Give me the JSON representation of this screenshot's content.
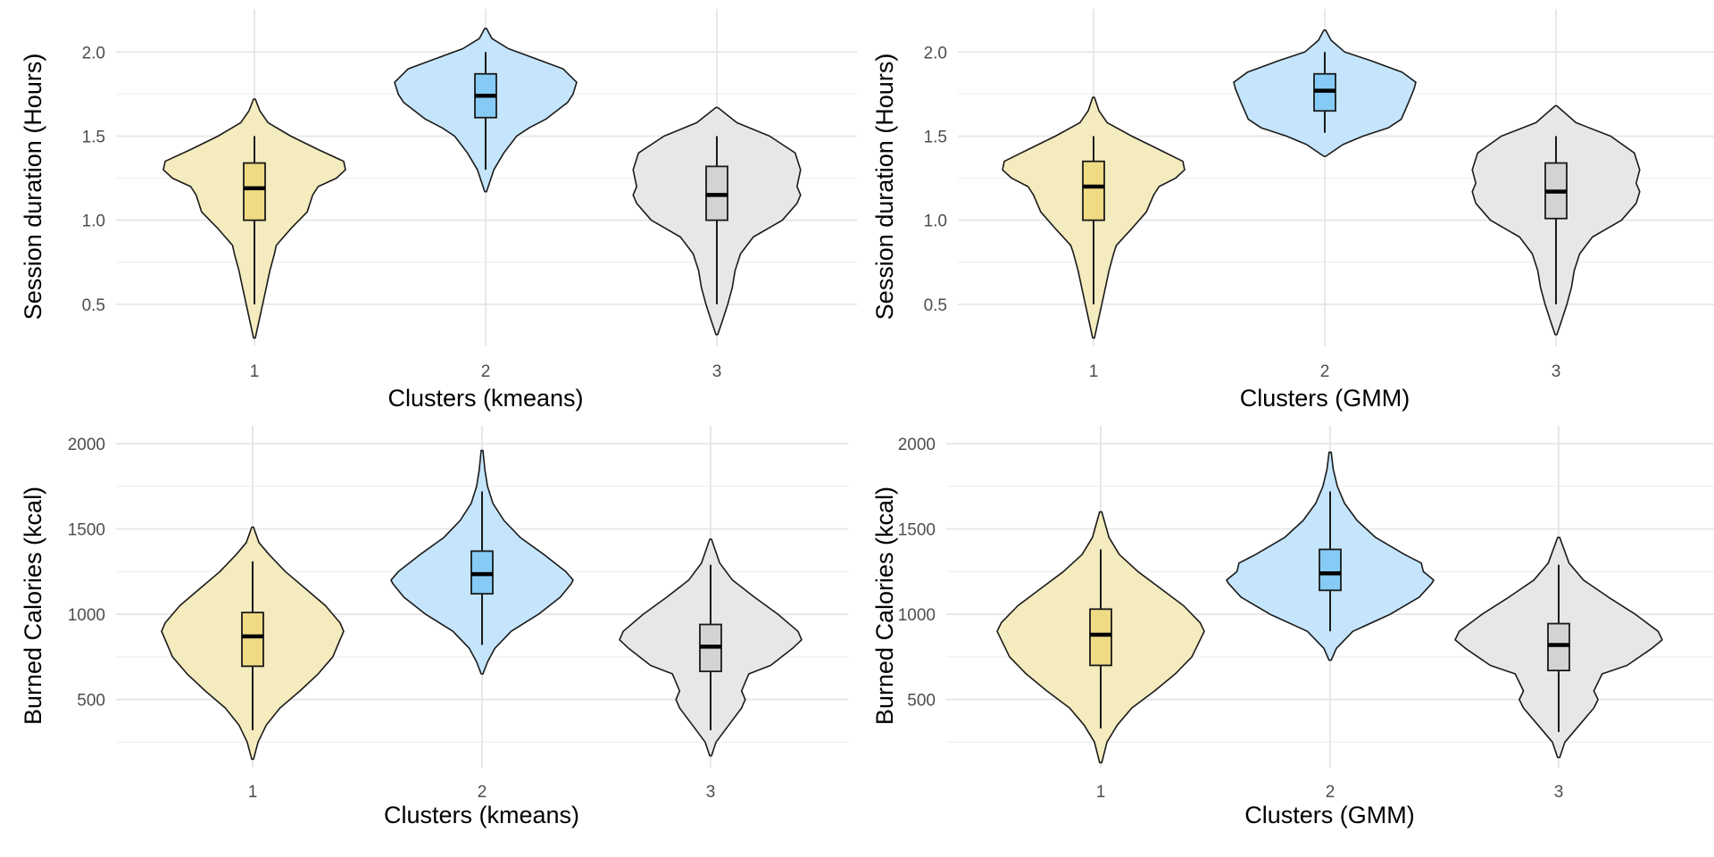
{
  "chart_data": [
    {
      "type": "violin",
      "xlabel": "Clusters (kmeans)",
      "ylabel": "Session duration (Hours)",
      "categories": [
        "1",
        "2",
        "3"
      ],
      "ylim": [
        0.25,
        2.15
      ],
      "yticks": [
        0.5,
        1.0,
        1.5,
        2.0
      ],
      "ytick_labels": [
        "0.5",
        "1.0",
        "1.5",
        "2.0"
      ],
      "grid": true,
      "violins": [
        {
          "min": 0.3,
          "max": 1.72,
          "box": {
            "whisker_low": 0.5,
            "q1": 1.0,
            "median": 1.19,
            "q3": 1.34,
            "whisker_high": 1.5
          },
          "profile": [
            [
              0.3,
              0.01
            ],
            [
              0.4,
              0.05
            ],
            [
              0.5,
              0.09
            ],
            [
              0.6,
              0.13
            ],
            [
              0.7,
              0.17
            ],
            [
              0.8,
              0.22
            ],
            [
              0.85,
              0.24
            ],
            [
              0.95,
              0.4
            ],
            [
              1.05,
              0.58
            ],
            [
              1.15,
              0.64
            ],
            [
              1.2,
              0.7
            ],
            [
              1.25,
              0.9
            ],
            [
              1.3,
              1.0
            ],
            [
              1.35,
              0.98
            ],
            [
              1.42,
              0.7
            ],
            [
              1.5,
              0.4
            ],
            [
              1.58,
              0.15
            ],
            [
              1.65,
              0.06
            ],
            [
              1.72,
              0.01
            ]
          ]
        },
        {
          "min": 1.17,
          "max": 2.14,
          "box": {
            "whisker_low": 1.3,
            "q1": 1.61,
            "median": 1.74,
            "q3": 1.87,
            "whisker_high": 2.0
          },
          "profile": [
            [
              1.17,
              0.01
            ],
            [
              1.3,
              0.09
            ],
            [
              1.4,
              0.2
            ],
            [
              1.5,
              0.34
            ],
            [
              1.55,
              0.48
            ],
            [
              1.6,
              0.66
            ],
            [
              1.7,
              0.9
            ],
            [
              1.75,
              0.96
            ],
            [
              1.82,
              1.0
            ],
            [
              1.9,
              0.85
            ],
            [
              1.96,
              0.55
            ],
            [
              2.02,
              0.25
            ],
            [
              2.08,
              0.07
            ],
            [
              2.14,
              0.01
            ]
          ]
        },
        {
          "min": 0.32,
          "max": 1.67,
          "box": {
            "whisker_low": 0.5,
            "q1": 1.0,
            "median": 1.15,
            "q3": 1.32,
            "whisker_high": 1.5
          },
          "profile": [
            [
              0.32,
              0.01
            ],
            [
              0.4,
              0.06
            ],
            [
              0.5,
              0.12
            ],
            [
              0.6,
              0.17
            ],
            [
              0.7,
              0.2
            ],
            [
              0.8,
              0.26
            ],
            [
              0.9,
              0.4
            ],
            [
              1.0,
              0.72
            ],
            [
              1.1,
              0.88
            ],
            [
              1.15,
              0.92
            ],
            [
              1.2,
              0.88
            ],
            [
              1.3,
              0.92
            ],
            [
              1.4,
              0.86
            ],
            [
              1.5,
              0.58
            ],
            [
              1.58,
              0.22
            ],
            [
              1.67,
              0.01
            ]
          ]
        }
      ]
    },
    {
      "type": "violin",
      "xlabel": "Clusters (GMM)",
      "ylabel": "Session duration (Hours)",
      "categories": [
        "1",
        "2",
        "3"
      ],
      "ylim": [
        0.25,
        2.15
      ],
      "yticks": [
        0.5,
        1.0,
        1.5,
        2.0
      ],
      "ytick_labels": [
        "0.5",
        "1.0",
        "1.5",
        "2.0"
      ],
      "grid": true,
      "violins": [
        {
          "min": 0.3,
          "max": 1.73,
          "box": {
            "whisker_low": 0.5,
            "q1": 1.0,
            "median": 1.2,
            "q3": 1.35,
            "whisker_high": 1.5
          },
          "profile": [
            [
              0.3,
              0.01
            ],
            [
              0.4,
              0.05
            ],
            [
              0.5,
              0.09
            ],
            [
              0.6,
              0.13
            ],
            [
              0.7,
              0.17
            ],
            [
              0.8,
              0.22
            ],
            [
              0.85,
              0.25
            ],
            [
              0.95,
              0.42
            ],
            [
              1.05,
              0.58
            ],
            [
              1.15,
              0.66
            ],
            [
              1.2,
              0.72
            ],
            [
              1.25,
              0.9
            ],
            [
              1.3,
              1.0
            ],
            [
              1.35,
              0.98
            ],
            [
              1.42,
              0.72
            ],
            [
              1.5,
              0.42
            ],
            [
              1.58,
              0.15
            ],
            [
              1.65,
              0.06
            ],
            [
              1.73,
              0.01
            ]
          ]
        },
        {
          "min": 1.38,
          "max": 2.13,
          "box": {
            "whisker_low": 1.52,
            "q1": 1.65,
            "median": 1.77,
            "q3": 1.87,
            "whisker_high": 2.0
          },
          "profile": [
            [
              1.38,
              0.01
            ],
            [
              1.45,
              0.2
            ],
            [
              1.5,
              0.42
            ],
            [
              1.55,
              0.7
            ],
            [
              1.6,
              0.84
            ],
            [
              1.7,
              0.92
            ],
            [
              1.78,
              0.98
            ],
            [
              1.82,
              1.0
            ],
            [
              1.88,
              0.85
            ],
            [
              1.95,
              0.5
            ],
            [
              2.0,
              0.22
            ],
            [
              2.07,
              0.07
            ],
            [
              2.13,
              0.01
            ]
          ]
        },
        {
          "min": 0.32,
          "max": 1.68,
          "box": {
            "whisker_low": 0.5,
            "q1": 1.01,
            "median": 1.17,
            "q3": 1.34,
            "whisker_high": 1.5
          },
          "profile": [
            [
              0.32,
              0.01
            ],
            [
              0.4,
              0.06
            ],
            [
              0.5,
              0.12
            ],
            [
              0.6,
              0.17
            ],
            [
              0.7,
              0.2
            ],
            [
              0.8,
              0.26
            ],
            [
              0.9,
              0.4
            ],
            [
              1.0,
              0.72
            ],
            [
              1.1,
              0.88
            ],
            [
              1.17,
              0.92
            ],
            [
              1.22,
              0.88
            ],
            [
              1.3,
              0.92
            ],
            [
              1.4,
              0.86
            ],
            [
              1.5,
              0.6
            ],
            [
              1.58,
              0.22
            ],
            [
              1.68,
              0.01
            ]
          ]
        }
      ]
    },
    {
      "type": "violin",
      "xlabel": "Clusters (kmeans)",
      "ylabel": "Burned Calories (kcal)",
      "categories": [
        "1",
        "2",
        "3"
      ],
      "ylim": [
        100,
        2000
      ],
      "yticks": [
        500,
        1000,
        1500,
        2000
      ],
      "ytick_labels": [
        "500",
        "1000",
        "1500",
        "2000"
      ],
      "grid": true,
      "violins": [
        {
          "min": 150,
          "max": 1510,
          "box": {
            "whisker_low": 320,
            "q1": 695,
            "median": 870,
            "q3": 1010,
            "whisker_high": 1310
          },
          "profile": [
            [
              150,
              0.01
            ],
            [
              250,
              0.06
            ],
            [
              350,
              0.15
            ],
            [
              450,
              0.3
            ],
            [
              550,
              0.52
            ],
            [
              650,
              0.72
            ],
            [
              750,
              0.88
            ],
            [
              850,
              0.96
            ],
            [
              900,
              1.0
            ],
            [
              950,
              0.96
            ],
            [
              1050,
              0.8
            ],
            [
              1150,
              0.58
            ],
            [
              1250,
              0.36
            ],
            [
              1350,
              0.18
            ],
            [
              1420,
              0.07
            ],
            [
              1510,
              0.01
            ]
          ]
        },
        {
          "min": 650,
          "max": 1960,
          "box": {
            "whisker_low": 820,
            "q1": 1120,
            "median": 1235,
            "q3": 1370,
            "whisker_high": 1720
          },
          "profile": [
            [
              650,
              0.01
            ],
            [
              720,
              0.06
            ],
            [
              800,
              0.14
            ],
            [
              900,
              0.32
            ],
            [
              1000,
              0.62
            ],
            [
              1100,
              0.86
            ],
            [
              1180,
              0.98
            ],
            [
              1200,
              1.0
            ],
            [
              1250,
              0.92
            ],
            [
              1350,
              0.68
            ],
            [
              1450,
              0.42
            ],
            [
              1550,
              0.24
            ],
            [
              1650,
              0.12
            ],
            [
              1750,
              0.06
            ],
            [
              1850,
              0.03
            ],
            [
              1960,
              0.01
            ]
          ]
        },
        {
          "min": 170,
          "max": 1440,
          "box": {
            "whisker_low": 320,
            "q1": 665,
            "median": 810,
            "q3": 940,
            "whisker_high": 1290
          },
          "profile": [
            [
              170,
              0.01
            ],
            [
              250,
              0.06
            ],
            [
              350,
              0.2
            ],
            [
              450,
              0.34
            ],
            [
              500,
              0.38
            ],
            [
              550,
              0.34
            ],
            [
              650,
              0.42
            ],
            [
              700,
              0.66
            ],
            [
              800,
              0.9
            ],
            [
              850,
              1.0
            ],
            [
              900,
              0.96
            ],
            [
              1000,
              0.74
            ],
            [
              1100,
              0.48
            ],
            [
              1200,
              0.24
            ],
            [
              1300,
              0.1
            ],
            [
              1440,
              0.01
            ]
          ]
        }
      ]
    },
    {
      "type": "violin",
      "xlabel": "Clusters (GMM)",
      "ylabel": "Burned Calories (kcal)",
      "categories": [
        "1",
        "2",
        "3"
      ],
      "ylim": [
        100,
        2000
      ],
      "yticks": [
        500,
        1000,
        1500,
        2000
      ],
      "ytick_labels": [
        "500",
        "1000",
        "1500",
        "2000"
      ],
      "grid": true,
      "violins": [
        {
          "min": 130,
          "max": 1600,
          "box": {
            "whisker_low": 330,
            "q1": 700,
            "median": 880,
            "q3": 1030,
            "whisker_high": 1380
          },
          "profile": [
            [
              130,
              0.01
            ],
            [
              250,
              0.06
            ],
            [
              350,
              0.16
            ],
            [
              450,
              0.3
            ],
            [
              550,
              0.52
            ],
            [
              650,
              0.72
            ],
            [
              750,
              0.88
            ],
            [
              850,
              0.96
            ],
            [
              900,
              1.0
            ],
            [
              950,
              0.96
            ],
            [
              1050,
              0.8
            ],
            [
              1150,
              0.58
            ],
            [
              1250,
              0.36
            ],
            [
              1350,
              0.18
            ],
            [
              1450,
              0.08
            ],
            [
              1600,
              0.01
            ]
          ]
        },
        {
          "min": 730,
          "max": 1950,
          "box": {
            "whisker_low": 900,
            "q1": 1140,
            "median": 1240,
            "q3": 1380,
            "whisker_high": 1720
          },
          "profile": [
            [
              730,
              0.01
            ],
            [
              800,
              0.06
            ],
            [
              900,
              0.22
            ],
            [
              1000,
              0.58
            ],
            [
              1100,
              0.86
            ],
            [
              1180,
              0.98
            ],
            [
              1200,
              1.0
            ],
            [
              1250,
              0.9
            ],
            [
              1300,
              0.88
            ],
            [
              1350,
              0.72
            ],
            [
              1450,
              0.44
            ],
            [
              1550,
              0.26
            ],
            [
              1650,
              0.14
            ],
            [
              1750,
              0.07
            ],
            [
              1850,
              0.03
            ],
            [
              1950,
              0.01
            ]
          ]
        },
        {
          "min": 160,
          "max": 1450,
          "box": {
            "whisker_low": 310,
            "q1": 670,
            "median": 820,
            "q3": 945,
            "whisker_high": 1290
          },
          "profile": [
            [
              160,
              0.01
            ],
            [
              250,
              0.06
            ],
            [
              350,
              0.2
            ],
            [
              450,
              0.34
            ],
            [
              500,
              0.38
            ],
            [
              550,
              0.34
            ],
            [
              650,
              0.42
            ],
            [
              700,
              0.66
            ],
            [
              800,
              0.9
            ],
            [
              850,
              1.0
            ],
            [
              900,
              0.96
            ],
            [
              1000,
              0.74
            ],
            [
              1100,
              0.48
            ],
            [
              1200,
              0.24
            ],
            [
              1300,
              0.1
            ],
            [
              1450,
              0.01
            ]
          ]
        }
      ]
    }
  ],
  "colors": {
    "violin_fills": [
      "#f4ebbe",
      "#c4e5fb",
      "#e7e7e7"
    ],
    "box_fills": [
      "#efdb84",
      "#86cbf6",
      "#d3d3d3"
    ],
    "outline": "#1a1a1a",
    "grid_major": "#e6e6e6",
    "grid_minor": "#f2f2f2"
  }
}
